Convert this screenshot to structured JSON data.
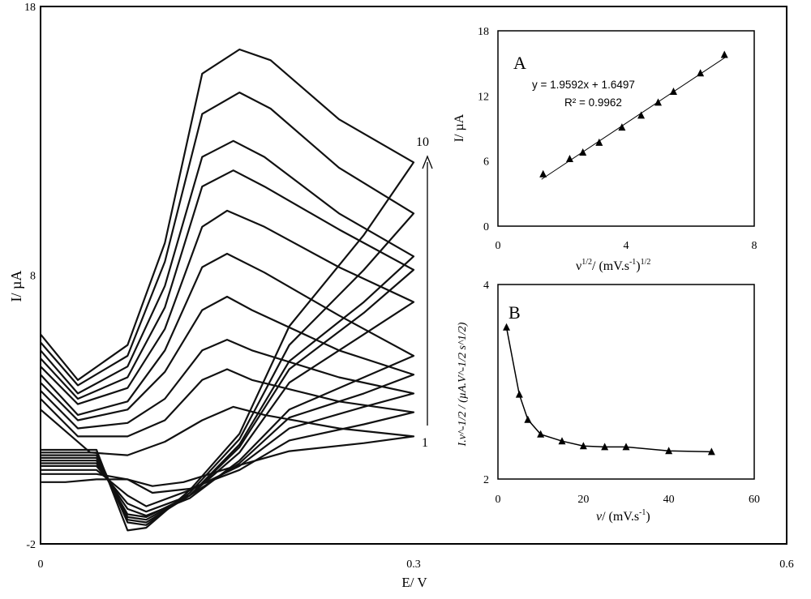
{
  "chart_data": [
    {
      "id": "main",
      "type": "line",
      "xlabel": "E/ V",
      "ylabel": "I/ µA",
      "xlim": [
        0,
        0.6
      ],
      "ylim": [
        -2,
        18
      ],
      "xticks": [
        "0",
        "0.3",
        "0.6"
      ],
      "yticks": [
        "-2",
        "8",
        "18"
      ],
      "arrow_label_start": "1",
      "arrow_label_end": "10",
      "series": [
        {
          "forward": [
            [
              0,
              3.0
            ],
            [
              0.04,
              1.4
            ],
            [
              0.07,
              1.3
            ],
            [
              0.1,
              1.8
            ],
            [
              0.13,
              2.6
            ],
            [
              0.155,
              3.1
            ],
            [
              0.18,
              2.8
            ],
            [
              0.24,
              2.3
            ],
            [
              0.3,
              2.0
            ]
          ],
          "reverse": [
            [
              0.3,
              2.0
            ],
            [
              0.26,
              1.75
            ],
            [
              0.2,
              1.45
            ],
            [
              0.15,
              0.8
            ],
            [
              0.115,
              0.3
            ],
            [
              0.09,
              0.15
            ],
            [
              0.07,
              0.4
            ],
            [
              0.045,
              0.4
            ],
            [
              0.02,
              0.3
            ],
            [
              0,
              0.3
            ]
          ]
        },
        {
          "forward": [
            [
              0,
              3.4
            ],
            [
              0.03,
              2.0
            ],
            [
              0.07,
              2.0
            ],
            [
              0.1,
              2.6
            ],
            [
              0.13,
              4.1
            ],
            [
              0.15,
              4.5
            ],
            [
              0.17,
              4.1
            ],
            [
              0.24,
              3.3
            ],
            [
              0.3,
              2.9
            ]
          ],
          "reverse": [
            [
              0.3,
              2.9
            ],
            [
              0.26,
              2.45
            ],
            [
              0.2,
              1.85
            ],
            [
              0.16,
              0.75
            ],
            [
              0.12,
              0.05
            ],
            [
              0.09,
              -0.1
            ],
            [
              0.07,
              0.4
            ],
            [
              0.045,
              0.6
            ],
            [
              0.02,
              0.6
            ],
            [
              0,
              0.6
            ]
          ]
        },
        {
          "forward": [
            [
              0,
              3.7
            ],
            [
              0.03,
              2.3
            ],
            [
              0.07,
              2.5
            ],
            [
              0.1,
              3.4
            ],
            [
              0.13,
              5.2
            ],
            [
              0.15,
              5.6
            ],
            [
              0.17,
              5.2
            ],
            [
              0.24,
              4.2
            ],
            [
              0.3,
              3.6
            ]
          ],
          "reverse": [
            [
              0.3,
              3.6
            ],
            [
              0.26,
              3.1
            ],
            [
              0.2,
              2.3
            ],
            [
              0.16,
              0.9
            ],
            [
              0.12,
              0.0
            ],
            [
              0.085,
              -0.6
            ],
            [
              0.07,
              -0.2
            ],
            [
              0.045,
              0.75
            ],
            [
              0.02,
              0.75
            ],
            [
              0,
              0.75
            ]
          ]
        },
        {
          "forward": [
            [
              0,
              4.0
            ],
            [
              0.03,
              2.6
            ],
            [
              0.07,
              3.0
            ],
            [
              0.1,
              4.4
            ],
            [
              0.13,
              6.7
            ],
            [
              0.15,
              7.2
            ],
            [
              0.17,
              6.7
            ],
            [
              0.24,
              5.2
            ],
            [
              0.3,
              4.3
            ]
          ],
          "reverse": [
            [
              0.3,
              4.3
            ],
            [
              0.26,
              3.6
            ],
            [
              0.2,
              2.7
            ],
            [
              0.16,
              1.0
            ],
            [
              0.12,
              -0.2
            ],
            [
              0.085,
              -0.8
            ],
            [
              0.07,
              -0.5
            ],
            [
              0.045,
              0.9
            ],
            [
              0.02,
              0.9
            ],
            [
              0,
              0.9
            ]
          ]
        },
        {
          "forward": [
            [
              0,
              4.3
            ],
            [
              0.03,
              2.8
            ],
            [
              0.07,
              3.3
            ],
            [
              0.1,
              5.2
            ],
            [
              0.13,
              8.3
            ],
            [
              0.15,
              8.8
            ],
            [
              0.18,
              8.1
            ],
            [
              0.24,
              6.5
            ],
            [
              0.3,
              5.0
            ]
          ],
          "reverse": [
            [
              0.3,
              5.0
            ],
            [
              0.26,
              4.2
            ],
            [
              0.2,
              3.0
            ],
            [
              0.16,
              1.1
            ],
            [
              0.12,
              -0.3
            ],
            [
              0.085,
              -0.95
            ],
            [
              0.07,
              -0.7
            ],
            [
              0.045,
              1.0
            ],
            [
              0.02,
              1.0
            ],
            [
              0,
              1.0
            ]
          ]
        },
        {
          "forward": [
            [
              0,
              4.6
            ],
            [
              0.03,
              3.2
            ],
            [
              0.07,
              3.8
            ],
            [
              0.1,
              6.0
            ],
            [
              0.13,
              9.8
            ],
            [
              0.15,
              10.4
            ],
            [
              0.18,
              9.8
            ],
            [
              0.24,
              8.3
            ],
            [
              0.3,
              7.0
            ]
          ],
          "reverse": [
            [
              0.3,
              7.0
            ],
            [
              0.26,
              5.8
            ],
            [
              0.2,
              4.0
            ],
            [
              0.16,
              1.4
            ],
            [
              0.12,
              -0.2
            ],
            [
              0.085,
              -1.0
            ],
            [
              0.07,
              -0.9
            ],
            [
              0.045,
              1.1
            ],
            [
              0.02,
              1.1
            ],
            [
              0,
              1.1
            ]
          ]
        },
        {
          "forward": [
            [
              0,
              4.9
            ],
            [
              0.03,
              3.4
            ],
            [
              0.07,
              4.2
            ],
            [
              0.1,
              6.8
            ],
            [
              0.13,
              11.3
            ],
            [
              0.155,
              11.9
            ],
            [
              0.18,
              11.3
            ],
            [
              0.24,
              9.7
            ],
            [
              0.3,
              8.2
            ]
          ],
          "reverse": [
            [
              0.3,
              8.2
            ],
            [
              0.26,
              6.6
            ],
            [
              0.2,
              4.5
            ],
            [
              0.16,
              1.6
            ],
            [
              0.12,
              -0.2
            ],
            [
              0.085,
              -1.1
            ],
            [
              0.07,
              -1.0
            ],
            [
              0.045,
              1.2
            ],
            [
              0.02,
              1.2
            ],
            [
              0,
              1.2
            ]
          ]
        },
        {
          "forward": [
            [
              0,
              5.2
            ],
            [
              0.03,
              3.6
            ],
            [
              0.07,
              4.6
            ],
            [
              0.1,
              7.6
            ],
            [
              0.13,
              12.4
            ],
            [
              0.155,
              13.0
            ],
            [
              0.18,
              12.4
            ],
            [
              0.24,
              10.3
            ],
            [
              0.3,
              8.7
            ]
          ],
          "reverse": [
            [
              0.3,
              8.7
            ],
            [
              0.26,
              7.0
            ],
            [
              0.2,
              4.8
            ],
            [
              0.16,
              1.7
            ],
            [
              0.12,
              -0.2
            ],
            [
              0.085,
              -1.2
            ],
            [
              0.07,
              -1.1
            ],
            [
              0.045,
              1.3
            ],
            [
              0.02,
              1.3
            ],
            [
              0,
              1.3
            ]
          ]
        },
        {
          "forward": [
            [
              0,
              5.5
            ],
            [
              0.03,
              3.9
            ],
            [
              0.07,
              5.0
            ],
            [
              0.1,
              8.5
            ],
            [
              0.13,
              14.0
            ],
            [
              0.16,
              14.8
            ],
            [
              0.185,
              14.2
            ],
            [
              0.24,
              12.0
            ],
            [
              0.3,
              10.3
            ]
          ],
          "reverse": [
            [
              0.3,
              10.3
            ],
            [
              0.26,
              8.2
            ],
            [
              0.2,
              5.4
            ],
            [
              0.16,
              1.9
            ],
            [
              0.12,
              -0.1
            ],
            [
              0.085,
              -1.3
            ],
            [
              0.07,
              -1.2
            ],
            [
              0.045,
              1.4
            ],
            [
              0.02,
              1.4
            ],
            [
              0,
              1.4
            ]
          ]
        },
        {
          "forward": [
            [
              0,
              5.8
            ],
            [
              0.03,
              4.1
            ],
            [
              0.07,
              5.4
            ],
            [
              0.1,
              9.2
            ],
            [
              0.13,
              15.5
            ],
            [
              0.16,
              16.4
            ],
            [
              0.185,
              16.0
            ],
            [
              0.24,
              13.8
            ],
            [
              0.3,
              12.2
            ]
          ],
          "reverse": [
            [
              0.3,
              12.2
            ],
            [
              0.26,
              9.5
            ],
            [
              0.2,
              6.1
            ],
            [
              0.16,
              2.1
            ],
            [
              0.12,
              0.0
            ],
            [
              0.085,
              -1.4
            ],
            [
              0.07,
              -1.5
            ],
            [
              0.045,
              1.5
            ],
            [
              0.02,
              1.5
            ],
            [
              0,
              1.5
            ]
          ]
        }
      ]
    },
    {
      "id": "A",
      "type": "scatter",
      "panel_label": "A",
      "xlabel": "ν^1/2 / (mV.s^-1)^1/2",
      "xlabel_parts": [
        "ν",
        "1/2",
        "/ (mV.s",
        "-1",
        ")",
        "1/2"
      ],
      "ylabel": "I/ µA",
      "xlim": [
        0,
        8
      ],
      "ylim": [
        0,
        18
      ],
      "xticks": [
        "0",
        "4",
        "8"
      ],
      "yticks": [
        "0",
        "6",
        "12",
        "18"
      ],
      "equation": "y = 1.9592x + 1.6497",
      "r2": "R² = 0.9962",
      "fit": {
        "slope": 1.9592,
        "intercept": 1.6497
      },
      "x": [
        1.41,
        2.24,
        2.65,
        3.16,
        3.87,
        4.47,
        5.0,
        5.48,
        6.32,
        7.07
      ],
      "y": [
        4.8,
        6.2,
        6.8,
        7.7,
        9.1,
        10.2,
        11.4,
        12.4,
        14.1,
        15.8
      ]
    },
    {
      "id": "B",
      "type": "line",
      "panel_label": "B",
      "xlabel": "v/ (mV.s^-1)",
      "xlabel_parts": [
        "v",
        "/ (mV.s",
        "-1",
        ")"
      ],
      "ylabel": "I.ν^-1/2 / (µA.V^-1/2 s^1/2)",
      "xlim": [
        0,
        60
      ],
      "ylim": [
        2,
        4
      ],
      "xticks": [
        "0",
        "20",
        "40",
        "60"
      ],
      "yticks": [
        "2",
        "4"
      ],
      "x": [
        2,
        5,
        7,
        10,
        15,
        20,
        25,
        30,
        40,
        50
      ],
      "y": [
        3.56,
        2.87,
        2.61,
        2.46,
        2.39,
        2.34,
        2.33,
        2.33,
        2.29,
        2.28
      ]
    }
  ]
}
